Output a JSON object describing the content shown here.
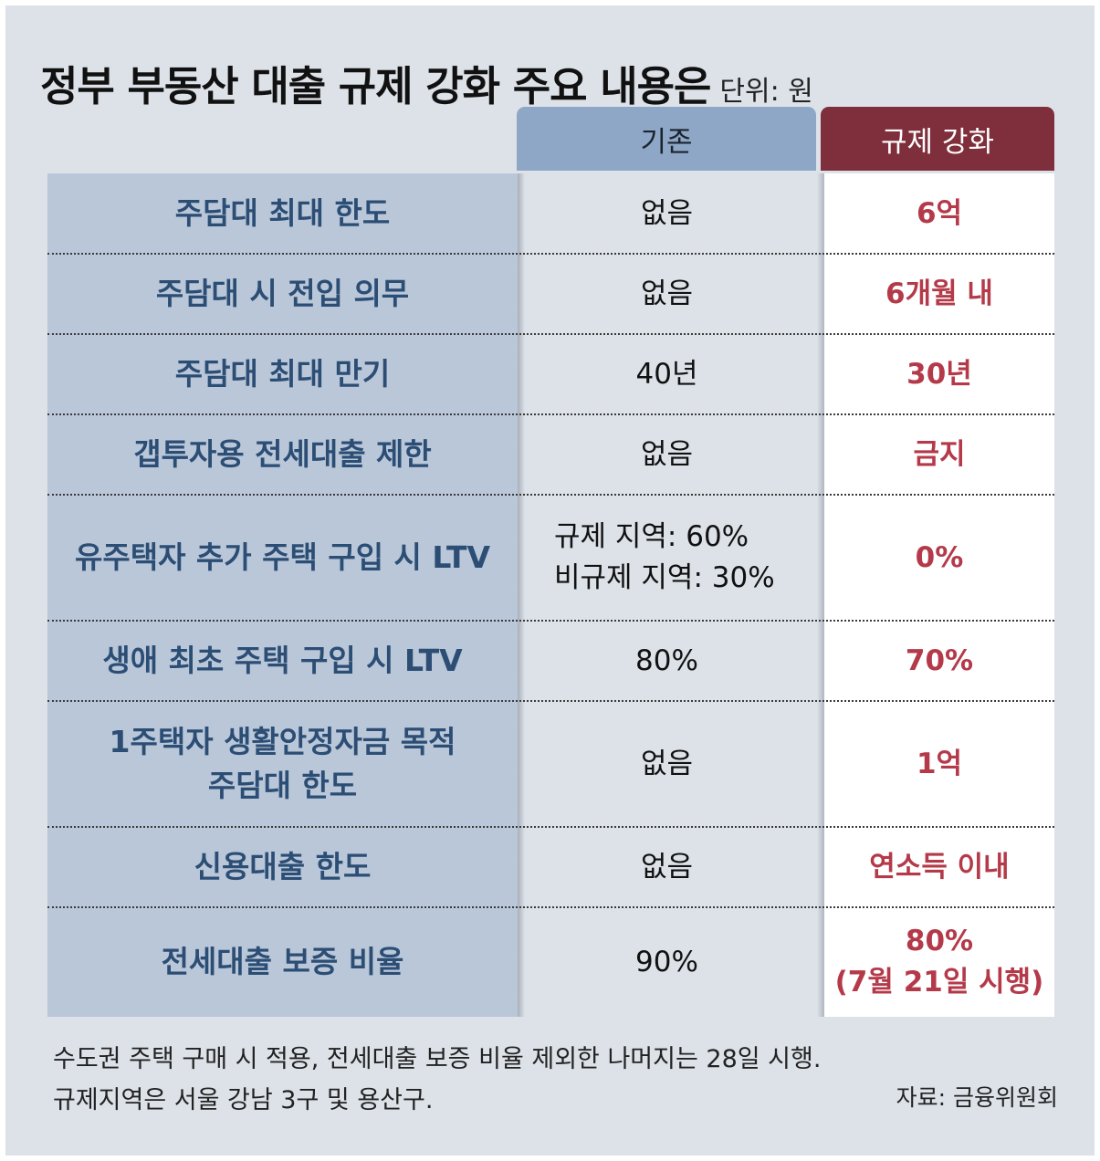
{
  "title": "정부 부동산 대출 규제 강화 주요 내용은",
  "unit": "단위: 원",
  "columns": {
    "base": "기존",
    "new": "규제 강화"
  },
  "chart_data": {
    "type": "table",
    "columns": [
      "",
      "기존",
      "규제 강화"
    ],
    "rows": [
      {
        "label": [
          "주담대 최대 한도"
        ],
        "base": [
          "없음"
        ],
        "new": [
          "6억"
        ]
      },
      {
        "label": [
          "주담대 시 전입 의무"
        ],
        "base": [
          "없음"
        ],
        "new": [
          "6개월 내"
        ]
      },
      {
        "label": [
          "주담대 최대 만기"
        ],
        "base": [
          "40년"
        ],
        "new": [
          "30년"
        ]
      },
      {
        "label": [
          "갭투자용 전세대출 제한"
        ],
        "base": [
          "없음"
        ],
        "new": [
          "금지"
        ]
      },
      {
        "label": [
          "유주택자 추가 주택 구입 시 LTV"
        ],
        "base": [
          "규제 지역: 60%",
          "비규제 지역: 30%"
        ],
        "new": [
          "0%"
        ]
      },
      {
        "label": [
          "생애 최초 주택 구입 시 LTV"
        ],
        "base": [
          "80%"
        ],
        "new": [
          "70%"
        ]
      },
      {
        "label": [
          "1주택자 생활안정자금 목적",
          "주담대 한도"
        ],
        "base": [
          "없음"
        ],
        "new": [
          "1억"
        ]
      },
      {
        "label": [
          "신용대출 한도"
        ],
        "base": [
          "없음"
        ],
        "new": [
          "연소득 이내"
        ]
      },
      {
        "label": [
          "전세대출 보증 비율"
        ],
        "base": [
          "90%"
        ],
        "new": [
          "80%",
          "(7월 21일 시행)"
        ]
      }
    ]
  },
  "notes": [
    "수도권 주택 구매 시 적용, 전세대출 보증 비율 제외한 나머지는 28일 시행.",
    "규제지역은 서울 강남 3구 및 용산구."
  ],
  "source": "자료: 금융위원회",
  "colors": {
    "label_bg": "#b9c7d9",
    "label_text": "#2c4d74",
    "base_header": "#8ea7c6",
    "new_header": "#7f2e3b",
    "new_text": "#b43a4a"
  }
}
